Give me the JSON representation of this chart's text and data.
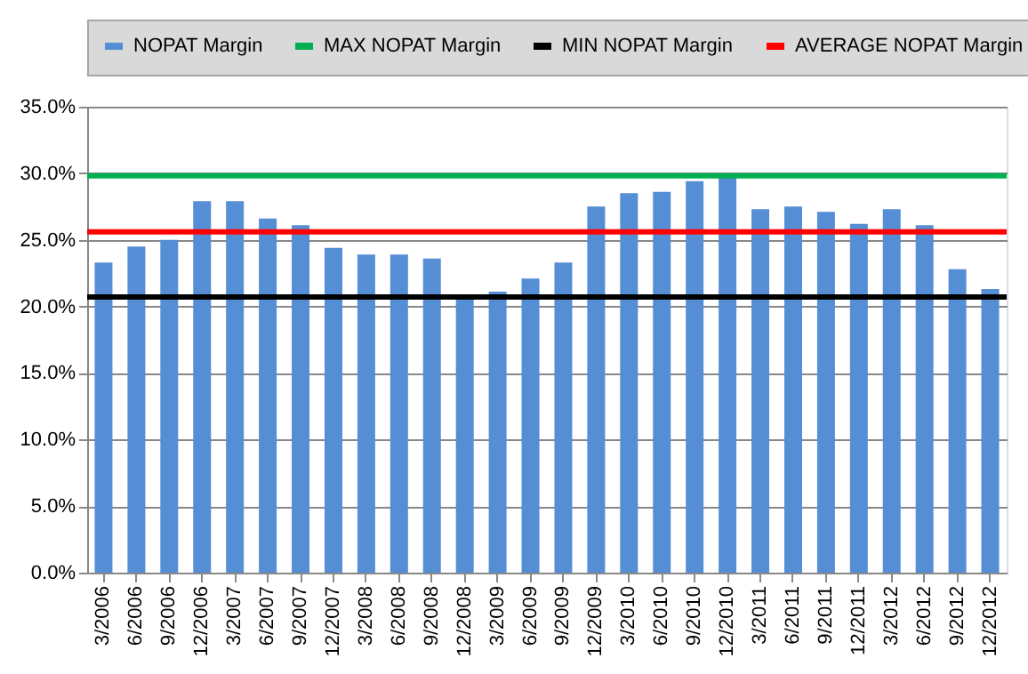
{
  "chart_data": {
    "type": "bar",
    "categories": [
      "3/2006",
      "6/2006",
      "9/2006",
      "12/2006",
      "3/2007",
      "6/2007",
      "9/2007",
      "12/2007",
      "3/2008",
      "6/2008",
      "9/2008",
      "12/2008",
      "3/2009",
      "6/2009",
      "9/2009",
      "12/2009",
      "3/2010",
      "6/2010",
      "9/2010",
      "12/2010",
      "3/2011",
      "6/2011",
      "9/2011",
      "12/2011",
      "3/2012",
      "6/2012",
      "9/2012",
      "12/2012"
    ],
    "series": [
      {
        "name": "NOPAT Margin",
        "color": "#558ed5",
        "values": [
          23.3,
          24.5,
          25.0,
          27.9,
          27.9,
          26.6,
          26.1,
          24.4,
          23.9,
          23.9,
          23.6,
          20.7,
          21.1,
          22.1,
          23.3,
          27.5,
          28.5,
          28.6,
          29.4,
          29.8,
          27.3,
          27.5,
          27.1,
          26.2,
          27.3,
          26.1,
          22.8,
          21.3
        ]
      }
    ],
    "ref_lines": [
      {
        "axis": "y",
        "value": 29.8,
        "label": "MAX NOPAT Margin",
        "color": "#00b050"
      },
      {
        "axis": "y",
        "value": 20.7,
        "label": "MIN NOPAT Margin",
        "color": "#000000"
      },
      {
        "axis": "y",
        "value": 25.6,
        "label": "AVERAGE NOPAT Margin",
        "color": "#ff0000"
      }
    ],
    "ylim": [
      0,
      35
    ],
    "yticks": [
      {
        "value": 0,
        "label": "0.0%"
      },
      {
        "value": 5,
        "label": "5.0%"
      },
      {
        "value": 10,
        "label": "10.0%"
      },
      {
        "value": 15,
        "label": "15.0%"
      },
      {
        "value": 20,
        "label": "20.0%"
      },
      {
        "value": 25,
        "label": "25.0%"
      },
      {
        "value": 30,
        "label": "30.0%"
      },
      {
        "value": 35,
        "label": "35.0%"
      }
    ],
    "grid": "y",
    "legend": "top"
  }
}
